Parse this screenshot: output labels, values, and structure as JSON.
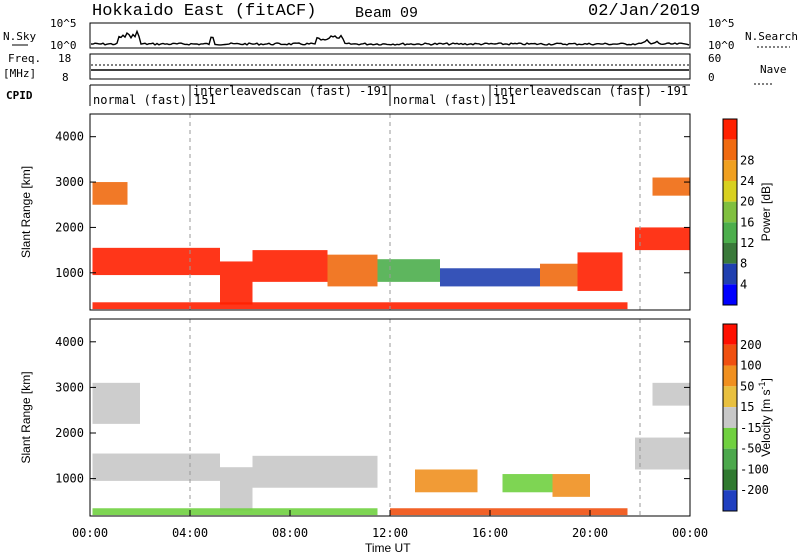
{
  "header": {
    "title": "Hokkaido East (fitACF)",
    "beam": "Beam 09",
    "date": "02/Jan/2019"
  },
  "top_panels": {
    "nsky_label": "N.Sky",
    "nsky_ticks": [
      "10^5",
      "10^0"
    ],
    "nsearch_label": "N.Search",
    "nsearch_ticks": [
      "10^5",
      "10^0"
    ],
    "freq_label": "Freq.",
    "freq_unit": "[MHz]",
    "freq_ticks": [
      "18",
      "8"
    ],
    "nave_label": "Nave",
    "nave_ticks": [
      "60",
      "0"
    ],
    "cpid_label": "CPID",
    "cpid_segments": [
      {
        "text": "normal (fast) 151",
        "start_hour": 0.0,
        "end_hour": 4.0
      },
      {
        "text": "interleavedscan (fast) -191",
        "start_hour": 4.0,
        "end_hour": 12.0
      },
      {
        "text": "normal (fast) 151",
        "start_hour": 12.0,
        "end_hour": 16.0
      },
      {
        "text": "interleavedscan (fast) -191",
        "start_hour": 16.0,
        "end_hour": 22.0
      }
    ]
  },
  "chart_data": [
    {
      "type": "heatmap",
      "name": "power",
      "ylabel": "Slant Range [km]",
      "yticks": [
        "1000",
        "2000",
        "3000",
        "4000"
      ],
      "ylim": [
        180,
        4500
      ],
      "xlim_hours": [
        0,
        24
      ],
      "colorbar_label": "Power [dB]",
      "colorbar_ticks": [
        "4",
        "8",
        "12",
        "16",
        "20",
        "24",
        "28"
      ],
      "colorbar_colors": [
        "#0000ff",
        "#2040b0",
        "#3a7a3a",
        "#4cae4c",
        "#80c040",
        "#d8d020",
        "#f0a020",
        "#f06a10",
        "#ff2000"
      ],
      "regions": [
        {
          "t0": 0.1,
          "t1": 5.2,
          "r0": 950,
          "r1": 1550,
          "value": "#ff2000"
        },
        {
          "t0": 5.2,
          "t1": 6.5,
          "r0": 300,
          "r1": 1250,
          "value": "#ff2000"
        },
        {
          "t0": 6.5,
          "t1": 9.5,
          "r0": 800,
          "r1": 1500,
          "value": "#ff2000"
        },
        {
          "t0": 9.5,
          "t1": 11.5,
          "r0": 700,
          "r1": 1400,
          "value": "#f06a10"
        },
        {
          "t0": 11.5,
          "t1": 14.0,
          "r0": 800,
          "r1": 1300,
          "value": "#4cae4c"
        },
        {
          "t0": 14.0,
          "t1": 18.0,
          "r0": 700,
          "r1": 1100,
          "value": "#2040b0"
        },
        {
          "t0": 18.0,
          "t1": 19.5,
          "r0": 700,
          "r1": 1200,
          "value": "#f06a10"
        },
        {
          "t0": 19.5,
          "t1": 21.3,
          "r0": 600,
          "r1": 1450,
          "value": "#ff2000"
        },
        {
          "t0": 0.1,
          "t1": 21.5,
          "r0": 200,
          "r1": 350,
          "value": "#ff2000"
        },
        {
          "t0": 0.1,
          "t1": 1.5,
          "r0": 2500,
          "r1": 3000,
          "value": "#f06a10"
        },
        {
          "t0": 21.8,
          "t1": 24.0,
          "r0": 1500,
          "r1": 2000,
          "value": "#ff2000"
        },
        {
          "t0": 22.5,
          "t1": 24.0,
          "r0": 2700,
          "r1": 3100,
          "value": "#f06a10"
        }
      ]
    },
    {
      "type": "heatmap",
      "name": "velocity",
      "ylabel": "Slant Range [km]",
      "yticks": [
        "1000",
        "2000",
        "3000",
        "4000"
      ],
      "ylim": [
        180,
        4500
      ],
      "xlim_hours": [
        0,
        24
      ],
      "xticks": [
        "00:00",
        "04:00",
        "08:00",
        "12:00",
        "16:00",
        "20:00",
        "00:00"
      ],
      "xlabel": "Time UT",
      "colorbar_label": "Velocity [m s",
      "colorbar_label_sup": "-1",
      "colorbar_label_end": "]",
      "colorbar_ticks": [
        "200",
        "100",
        "50",
        "15",
        "-15",
        "-50",
        "-100",
        "-200"
      ],
      "colorbar_colors": [
        "#2040c0",
        "#307a30",
        "#4ca84c",
        "#70d040",
        "#c8c8c8",
        "#e8c040",
        "#f09020",
        "#f05010",
        "#ff1000"
      ],
      "regions": [
        {
          "t0": 0.1,
          "t1": 5.2,
          "r0": 950,
          "r1": 1550,
          "value": "#c8c8c8"
        },
        {
          "t0": 5.2,
          "t1": 6.5,
          "r0": 300,
          "r1": 1250,
          "value": "#c8c8c8"
        },
        {
          "t0": 6.5,
          "t1": 11.5,
          "r0": 800,
          "r1": 1500,
          "value": "#c8c8c8"
        },
        {
          "t0": 0.1,
          "t1": 11.5,
          "r0": 200,
          "r1": 350,
          "value": "#70d040"
        },
        {
          "t0": 13.0,
          "t1": 15.5,
          "r0": 700,
          "r1": 1200,
          "value": "#f09020"
        },
        {
          "t0": 16.5,
          "t1": 18.5,
          "r0": 700,
          "r1": 1100,
          "value": "#70d040"
        },
        {
          "t0": 18.5,
          "t1": 20.0,
          "r0": 600,
          "r1": 1100,
          "value": "#f09020"
        },
        {
          "t0": 12.0,
          "t1": 21.5,
          "r0": 200,
          "r1": 350,
          "value": "#f05010"
        },
        {
          "t0": 0.1,
          "t1": 2.0,
          "r0": 2200,
          "r1": 3100,
          "value": "#c8c8c8"
        },
        {
          "t0": 21.8,
          "t1": 24.0,
          "r0": 1200,
          "r1": 1900,
          "value": "#c8c8c8"
        },
        {
          "t0": 22.5,
          "t1": 24.0,
          "r0": 2600,
          "r1": 3100,
          "value": "#c8c8c8"
        }
      ]
    }
  ]
}
